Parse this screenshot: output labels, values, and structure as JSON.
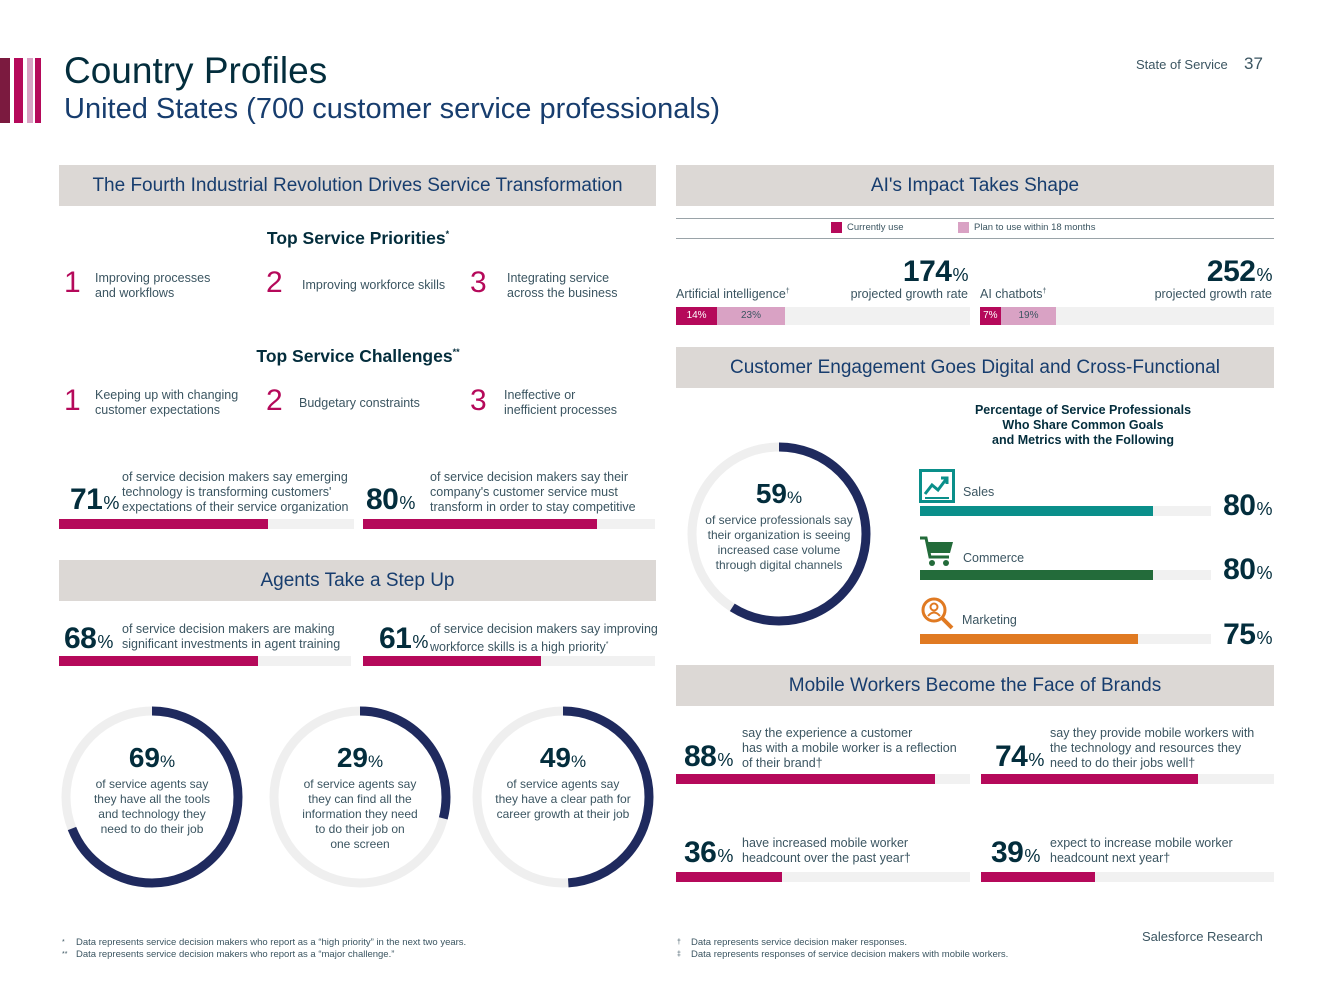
{
  "header": {
    "title": "Country Profiles",
    "subtitle": "United States (700 customer service professionals)",
    "section_label": "State of Service",
    "page_number": "37",
    "accent_colors": [
      "#7b1a3f",
      "#b5095a",
      "#d9a2c4"
    ]
  },
  "colors": {
    "magenta": "#b5095a",
    "navy": "#1f2a5e",
    "pink": "#d9a2c4",
    "teal": "#0a8f8a",
    "green": "#236b3a",
    "orange": "#e07a22"
  },
  "fourth": {
    "header": "The Fourth Industrial Revolution Drives Service Transformation",
    "priorities_title": "Top Service Priorities",
    "priorities_mark": "*",
    "priorities": [
      {
        "num": "1",
        "text_line1": "Improving processes",
        "text_line2": "and workflows"
      },
      {
        "num": "2",
        "text_line1": "Improving workforce skills",
        "text_line2": ""
      },
      {
        "num": "3",
        "text_line1": "Integrating service",
        "text_line2": "across the business"
      }
    ],
    "challenges_title": "Top Service Challenges",
    "challenges_mark": "**",
    "challenges": [
      {
        "num": "1",
        "text_line1": "Keeping up with changing",
        "text_line2": "customer expectations"
      },
      {
        "num": "2",
        "text_line1": "Budgetary constraints",
        "text_line2": ""
      },
      {
        "num": "3",
        "text_line1": "Ineffective or",
        "text_line2": "inefficient processes"
      }
    ],
    "stats": [
      {
        "value": "71",
        "unit": "%",
        "fraction": 0.71,
        "l1": "of service decision makers say emerging",
        "l2": "technology is transforming customers'",
        "l3": "expectations of their service organization"
      },
      {
        "value": "80",
        "unit": "%",
        "fraction": 0.8,
        "l1": "of service decision makers say their",
        "l2": "company's customer service must",
        "l3": "transform in order to stay competitive"
      }
    ]
  },
  "agents": {
    "header": "Agents Take a Step Up",
    "stats": [
      {
        "value": "68",
        "unit": "%",
        "fraction": 0.68,
        "l1": "of service decision makers are making",
        "l2": "significant investments in agent training",
        "mark": ""
      },
      {
        "value": "61",
        "unit": "%",
        "fraction": 0.61,
        "l1": "of service decision makers say improving",
        "l2": "workforce skills is a high priority",
        "mark": "*"
      }
    ],
    "donuts": [
      {
        "value": "69",
        "unit": "%",
        "fraction": 0.69,
        "lines": [
          "of service agents say",
          "they have all the tools",
          "and technology they",
          "need to do their job"
        ]
      },
      {
        "value": "29",
        "unit": "%",
        "fraction": 0.29,
        "lines": [
          "of service agents say",
          "they can find all the",
          "information they need",
          "to do their job on",
          "one screen"
        ]
      },
      {
        "value": "49",
        "unit": "%",
        "fraction": 0.49,
        "lines": [
          "of service agents say",
          "they have a clear path for",
          "career growth at their job"
        ]
      }
    ]
  },
  "ai": {
    "header": "AI's Impact Takes Shape",
    "legend": {
      "current": "Currently use",
      "plan": "Plan to use within 18 months"
    },
    "items": [
      {
        "label": "Artificial intelligence",
        "mark": "†",
        "growth": "174",
        "unit": "%",
        "growth_label": "projected growth rate",
        "current": "14%",
        "current_fraction": 0.14,
        "plan": "23%",
        "plan_fraction": 0.23
      },
      {
        "label": "AI chatbots",
        "mark": "†",
        "growth": "252",
        "unit": "%",
        "growth_label": "projected growth rate",
        "current": "7%",
        "current_fraction": 0.07,
        "plan": "19%",
        "plan_fraction": 0.19
      }
    ]
  },
  "engagement": {
    "header": "Customer Engagement Goes Digital and Cross-Functional",
    "donut": {
      "value": "59",
      "unit": "%",
      "fraction": 0.59,
      "lines": [
        "of service professionals say",
        "their organization is seeing",
        "increased case volume",
        "through digital channels"
      ]
    },
    "bars_title_l1": "Percentage of Service Professionals",
    "bars_title_l2": "Who Share Common Goals",
    "bars_title_l3": "and Metrics with the Following",
    "bars": [
      {
        "label": "Sales",
        "value": "80",
        "unit": "%",
        "fraction": 0.8,
        "icon": "sales-chart-icon",
        "color": "#0a8f8a"
      },
      {
        "label": "Commerce",
        "value": "80",
        "unit": "%",
        "fraction": 0.8,
        "icon": "shopping-cart-icon",
        "color": "#236b3a"
      },
      {
        "label": "Marketing",
        "value": "75",
        "unit": "%",
        "fraction": 0.75,
        "icon": "magnifier-person-icon",
        "color": "#e07a22"
      }
    ]
  },
  "mobile": {
    "header": "Mobile Workers Become the Face of Brands",
    "stats": [
      {
        "value": "88",
        "unit": "%",
        "fraction": 0.88,
        "lines": [
          "say the experience a customer",
          "has with a mobile worker is a reflection",
          "of their brand†"
        ]
      },
      {
        "value": "74",
        "unit": "%",
        "fraction": 0.74,
        "lines": [
          "say they provide mobile workers with",
          "the technology and resources they",
          "need to do their jobs well†"
        ]
      },
      {
        "value": "36",
        "unit": "%",
        "fraction": 0.36,
        "lines": [
          "have increased mobile worker",
          "headcount over the past year†"
        ]
      },
      {
        "value": "39",
        "unit": "%",
        "fraction": 0.39,
        "lines": [
          "expect to increase mobile worker",
          "headcount next year†"
        ]
      }
    ]
  },
  "footnotes": {
    "left": [
      {
        "mark": "*",
        "text": "Data represents service decision makers who report as a “high priority” in the next two years."
      },
      {
        "mark": "**",
        "text": "Data represents service decision makers who report as a “major challenge.”"
      }
    ],
    "right": [
      {
        "mark": "†",
        "text": "Data represents service decision maker responses."
      },
      {
        "mark": "‡",
        "text": "Data represents responses of service decision makers with mobile workers."
      }
    ],
    "brand": "Salesforce Research"
  }
}
